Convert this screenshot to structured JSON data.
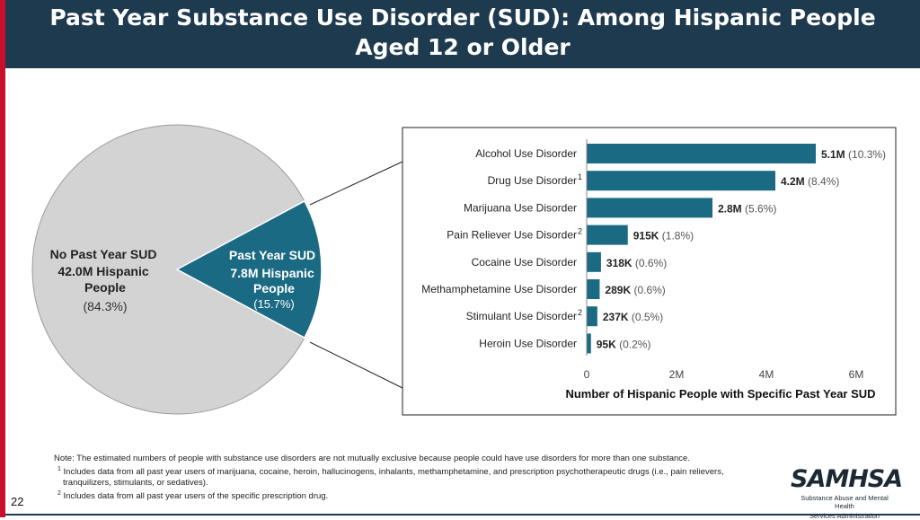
{
  "slide": {
    "title_line1": "Past Year Substance Use Disorder (SUD): Among Hispanic People",
    "title_line2": "Aged 12 or Older",
    "page_number": "22",
    "note": "Note: The estimated numbers of people with substance use disorders are not mutually exclusive because people could have use disorders for more than one substance.",
    "footnote1_mark": "1",
    "footnote1": "Includes data from all past year users of marijuana, cocaine, heroin, hallucinogens, inhalants, methamphetamine, and prescription psychotherapeutic drugs (i.e., pain relievers, tranquilizers, stimulants, or sedatives).",
    "footnote2_mark": "2",
    "footnote2": "Includes data from all past year users of the specific prescription drug.",
    "logo_text": "SAMHSA",
    "logo_sub1": "Substance Abuse and Mental Health",
    "logo_sub2": "Services Administration"
  },
  "pie": {
    "no_sud_line1": "No Past Year SUD",
    "no_sud_line2": "42.0M Hispanic",
    "no_sud_line3": "People",
    "no_sud_pct": "(84.3%)",
    "sud_line1": "Past Year SUD",
    "sud_line2": "7.8M Hispanic",
    "sud_line3": "People",
    "sud_pct": "(15.7%)"
  },
  "colors": {
    "header": "#1d3a4f",
    "accent": "#c8102e",
    "bar": "#1b6a83",
    "pie_gray": "#d3d3d3",
    "pie_teal": "#1b6a83"
  },
  "chart_data": [
    {
      "type": "pie",
      "slices": [
        {
          "label": "No Past Year SUD",
          "value": 42.0,
          "percent": 84.3
        },
        {
          "label": "Past Year SUD",
          "value": 7.8,
          "percent": 15.7
        }
      ]
    },
    {
      "type": "bar",
      "orientation": "horizontal",
      "categories": [
        "Alcohol Use Disorder",
        "Drug Use Disorder",
        "Marijuana Use Disorder",
        "Pain Reliever Use Disorder",
        "Cocaine Use Disorder",
        "Methamphetamine Use Disorder",
        "Stimulant Use Disorder",
        "Heroin Use Disorder"
      ],
      "category_marks": [
        "",
        "1",
        "",
        "2",
        "",
        "",
        "2",
        ""
      ],
      "values": [
        5.1,
        4.2,
        2.8,
        0.915,
        0.318,
        0.289,
        0.237,
        0.095
      ],
      "value_labels": [
        "5.1M",
        "4.2M",
        "2.8M",
        "915K",
        "318K",
        "289K",
        "237K",
        "95K"
      ],
      "pct_labels": [
        "(10.3%)",
        "(8.4%)",
        "(5.6%)",
        "(1.8%)",
        "(0.6%)",
        "(0.6%)",
        "(0.5%)",
        "(0.2%)"
      ],
      "xlim": [
        0,
        6
      ],
      "xticks": [
        0,
        2,
        4,
        6
      ],
      "xtick_labels": [
        "0",
        "2M",
        "4M",
        "6M"
      ],
      "xlabel": "Number of Hispanic People with Specific Past Year SUD"
    }
  ]
}
